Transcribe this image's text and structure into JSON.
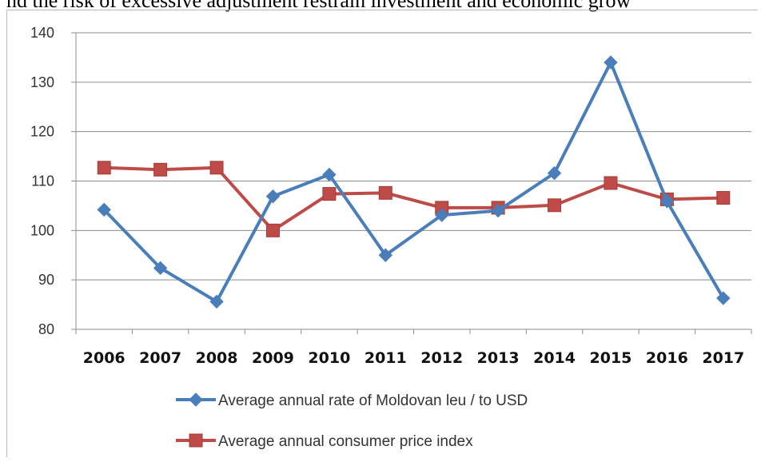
{
  "header": {
    "text": "nd the risk of excessive adjustment restrain investment and economic grow"
  },
  "chart_data": {
    "type": "line",
    "categories": [
      "2006",
      "2007",
      "2008",
      "2009",
      "2010",
      "2011",
      "2012",
      "2013",
      "2014",
      "2015",
      "2016",
      "2017"
    ],
    "ylim": [
      80,
      140
    ],
    "yticks": [
      "80",
      "90",
      "100",
      "110",
      "120",
      "130",
      "140"
    ],
    "grid": true,
    "legend_position": "bottom",
    "series": [
      {
        "name": "Average annual rate of Moldovan leu / to USD",
        "marker": "diamond",
        "color": "#4a7ebb",
        "values": [
          104.2,
          92.4,
          85.6,
          106.9,
          111.3,
          95.0,
          103.1,
          104.0,
          111.6,
          134.0,
          105.9,
          86.3
        ]
      },
      {
        "name": "Average annual consumer price index",
        "marker": "square",
        "color": "#be4b48",
        "values": [
          112.7,
          112.3,
          112.7,
          100.0,
          107.4,
          107.6,
          104.6,
          104.6,
          105.1,
          109.6,
          106.3,
          106.6
        ]
      }
    ]
  }
}
